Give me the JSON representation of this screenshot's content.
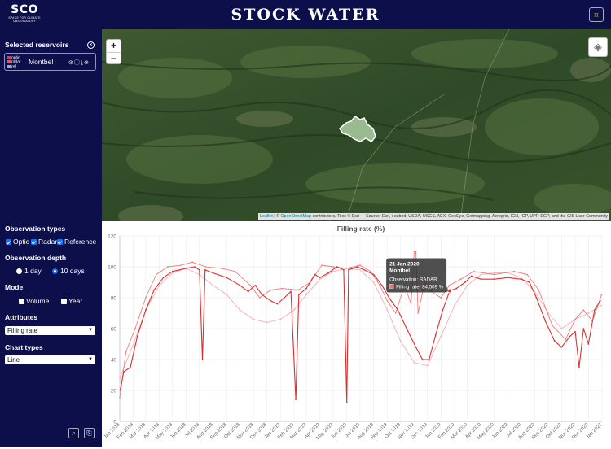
{
  "header": {
    "logo_text": "SCO",
    "logo_subtitle": "SPACE FOR CLIMATE OBSERVATORY",
    "title": "STOCK WATER",
    "theme_icon": "sun-icon"
  },
  "sidebar": {
    "selected_title": "Selected reservoirs",
    "reservoir": {
      "name": "Montbel",
      "legend": [
        "optic",
        "radar",
        "ref"
      ],
      "legend_colors": [
        "#e23b3b",
        "#e84f6a",
        "#a7a3c8"
      ]
    },
    "obs_types_title": "Observation types",
    "obs_types": [
      "Optic",
      "Radar",
      "Reference"
    ],
    "obs_depth_title": "Observation depth",
    "depth_options": [
      "1 day",
      "10 days"
    ],
    "depth_selected": "10 days",
    "mode_title": "Mode",
    "mode_options": [
      "Volume",
      "Year"
    ],
    "attributes_title": "Attributes",
    "attribute_value": "Filling rate",
    "chart_types_title": "Chart types",
    "chart_type_value": "Line"
  },
  "map": {
    "zoom_in": "+",
    "zoom_out": "−",
    "attribution_leaflet": "Leaflet",
    "attribution_osm": "OpenStreetMap",
    "attribution_rest": "contributors, Tiles © Esri — Source: Esri, i-cubed, USDA, USGS, AEX, GeoEye, Getmapping, Aerogrid, IGN, IGP, UPR-EGP, and the GIS User Community"
  },
  "chart_data": {
    "type": "line",
    "title": "Filling rate  (%)",
    "ylim": [
      0,
      120
    ],
    "yticks": [
      0,
      20,
      40,
      60,
      80,
      100,
      120
    ],
    "xlim": [
      "2018-01-01",
      "2021-01-01"
    ],
    "xticks": [
      "Jan 2018",
      "Feb 2018",
      "Mar 2018",
      "Apr 2018",
      "May 2018",
      "Jun 2018",
      "Jul 2018",
      "Aug 2018",
      "Sep 2018",
      "Oct 2018",
      "Nov 2018",
      "Dec 2018",
      "Jan 2019",
      "Feb 2019",
      "Mar 2019",
      "Apr 2019",
      "May 2019",
      "Jun 2019",
      "Jul 2019",
      "Aug 2019",
      "Sep 2019",
      "Oct 2019",
      "Nov 2019",
      "Dec 2019",
      "Jan 2020",
      "Feb 2020",
      "Mar 2020",
      "Apr 2020",
      "May 2020",
      "Jun 2020",
      "Jul 2020",
      "Aug 2020",
      "Sep 2020",
      "Oct 2020",
      "Nov 2020",
      "Dec 2020",
      "Jan 2021"
    ],
    "grid": true,
    "series": [
      {
        "name": "radar",
        "color": "#d93030",
        "points": [
          [
            "2018-01-02",
            20
          ],
          [
            "2018-01-10",
            32
          ],
          [
            "2018-01-25",
            35
          ],
          [
            "2018-02-10",
            55
          ],
          [
            "2018-03-01",
            72
          ],
          [
            "2018-03-20",
            85
          ],
          [
            "2018-04-10",
            93
          ],
          [
            "2018-05-01",
            97
          ],
          [
            "2018-06-01",
            99
          ],
          [
            "2018-06-20",
            100
          ],
          [
            "2018-07-01",
            98
          ],
          [
            "2018-07-08",
            40
          ],
          [
            "2018-07-14",
            98
          ],
          [
            "2018-08-01",
            96
          ],
          [
            "2018-09-01",
            93
          ],
          [
            "2018-10-01",
            88
          ],
          [
            "2018-10-20",
            84
          ],
          [
            "2018-11-05",
            88
          ],
          [
            "2018-11-20",
            82
          ],
          [
            "2018-12-10",
            78
          ],
          [
            "2018-12-25",
            76
          ],
          [
            "2019-01-10",
            80
          ],
          [
            "2019-01-25",
            84
          ],
          [
            "2019-02-05",
            14
          ],
          [
            "2019-02-12",
            82
          ],
          [
            "2019-03-01",
            86
          ],
          [
            "2019-03-20",
            95
          ],
          [
            "2019-04-01",
            93
          ],
          [
            "2019-04-20",
            96
          ],
          [
            "2019-05-10",
            100
          ],
          [
            "2019-05-25",
            98
          ],
          [
            "2019-06-01",
            12
          ],
          [
            "2019-06-05",
            98
          ],
          [
            "2019-06-25",
            100
          ],
          [
            "2019-07-10",
            98
          ],
          [
            "2019-08-01",
            95
          ],
          [
            "2019-08-20",
            88
          ],
          [
            "2019-09-05",
            80
          ],
          [
            "2019-09-25",
            72
          ],
          [
            "2019-10-15",
            60
          ],
          [
            "2019-11-05",
            48
          ],
          [
            "2019-11-20",
            40
          ],
          [
            "2019-12-05",
            40
          ],
          [
            "2019-12-20",
            56
          ],
          [
            "2020-01-05",
            72
          ],
          [
            "2020-01-21",
            84.5
          ],
          [
            "2020-02-05",
            86
          ],
          [
            "2020-02-25",
            90
          ],
          [
            "2020-03-10",
            94
          ],
          [
            "2020-04-01",
            92
          ],
          [
            "2020-05-01",
            92
          ],
          [
            "2020-06-01",
            93
          ],
          [
            "2020-07-01",
            92
          ],
          [
            "2020-07-20",
            90
          ],
          [
            "2020-08-05",
            80
          ],
          [
            "2020-08-25",
            65
          ],
          [
            "2020-09-15",
            52
          ],
          [
            "2020-10-01",
            48
          ],
          [
            "2020-10-20",
            55
          ],
          [
            "2020-11-01",
            58
          ],
          [
            "2020-11-10",
            35
          ],
          [
            "2020-11-20",
            60
          ],
          [
            "2020-12-01",
            50
          ],
          [
            "2020-12-15",
            72
          ],
          [
            "2020-12-28",
            78
          ]
        ]
      },
      {
        "name": "optic",
        "color": "#ef7b7b",
        "points": [
          [
            "2018-01-01",
            15
          ],
          [
            "2018-01-15",
            45
          ],
          [
            "2018-02-05",
            60
          ],
          [
            "2018-03-01",
            80
          ],
          [
            "2018-03-25",
            95
          ],
          [
            "2018-04-20",
            100
          ],
          [
            "2018-05-20",
            101
          ],
          [
            "2018-06-15",
            103
          ],
          [
            "2018-07-15",
            100
          ],
          [
            "2018-08-20",
            99
          ],
          [
            "2018-09-20",
            97
          ],
          [
            "2018-10-25",
            88
          ],
          [
            "2018-11-15",
            80
          ],
          [
            "2018-12-10",
            85
          ],
          [
            "2019-01-05",
            86
          ],
          [
            "2019-02-10",
            85
          ],
          [
            "2019-03-10",
            90
          ],
          [
            "2019-04-05",
            101
          ],
          [
            "2019-05-01",
            100
          ],
          [
            "2019-06-01",
            99
          ],
          [
            "2019-07-01",
            101
          ],
          [
            "2019-07-25",
            97
          ],
          [
            "2019-08-15",
            88
          ],
          [
            "2019-09-01",
            78
          ],
          [
            "2019-09-20",
            70
          ],
          [
            "2019-10-10",
            88
          ],
          [
            "2019-10-25",
            76
          ],
          [
            "2019-11-01",
            110
          ],
          [
            "2019-11-05",
            110
          ],
          [
            "2019-11-10",
            70
          ],
          [
            "2019-11-25",
            90
          ],
          [
            "2019-12-10",
            84
          ],
          [
            "2020-01-01",
            80
          ],
          [
            "2020-01-20",
            88
          ],
          [
            "2020-02-15",
            92
          ],
          [
            "2020-03-15",
            97
          ],
          [
            "2020-05-01",
            95
          ],
          [
            "2020-06-15",
            97
          ],
          [
            "2020-07-15",
            95
          ],
          [
            "2020-08-10",
            85
          ],
          [
            "2020-09-10",
            62
          ],
          [
            "2020-10-10",
            53
          ],
          [
            "2020-11-01",
            66
          ],
          [
            "2020-11-20",
            72
          ],
          [
            "2020-12-10",
            65
          ],
          [
            "2020-12-31",
            82
          ]
        ]
      },
      {
        "name": "ref",
        "color": "#f3adb5",
        "points": [
          [
            "2018-01-01",
            28
          ],
          [
            "2018-02-01",
            50
          ],
          [
            "2018-03-01",
            72
          ],
          [
            "2018-04-01",
            88
          ],
          [
            "2018-05-01",
            96
          ],
          [
            "2018-06-01",
            99
          ],
          [
            "2018-07-01",
            95
          ],
          [
            "2018-08-01",
            88
          ],
          [
            "2018-09-01",
            82
          ],
          [
            "2018-10-01",
            72
          ],
          [
            "2018-11-01",
            66
          ],
          [
            "2018-12-01",
            64
          ],
          [
            "2019-01-01",
            66
          ],
          [
            "2019-02-01",
            72
          ],
          [
            "2019-03-01",
            82
          ],
          [
            "2019-04-01",
            92
          ],
          [
            "2019-05-01",
            97
          ],
          [
            "2019-06-01",
            99
          ],
          [
            "2019-07-01",
            98
          ],
          [
            "2019-08-01",
            90
          ],
          [
            "2019-09-01",
            72
          ],
          [
            "2019-10-01",
            52
          ],
          [
            "2019-11-01",
            38
          ],
          [
            "2019-12-01",
            36
          ],
          [
            "2020-01-01",
            55
          ],
          [
            "2020-02-01",
            75
          ],
          [
            "2020-03-01",
            88
          ],
          [
            "2020-04-01",
            95
          ],
          [
            "2020-05-01",
            96
          ],
          [
            "2020-06-01",
            96
          ],
          [
            "2020-07-01",
            93
          ],
          [
            "2020-08-01",
            84
          ],
          [
            "2020-09-01",
            70
          ],
          [
            "2020-10-01",
            60
          ],
          [
            "2020-11-01",
            66
          ],
          [
            "2020-12-01",
            70
          ],
          [
            "2020-12-31",
            75
          ]
        ]
      }
    ],
    "tooltip": {
      "date": "21 Jan 2020",
      "reservoir": "Montbel",
      "observation": "Observation: RADAR",
      "value_text": "Filling rate: 84,509 %",
      "x": "2020-01-21",
      "y": 84.5
    }
  }
}
